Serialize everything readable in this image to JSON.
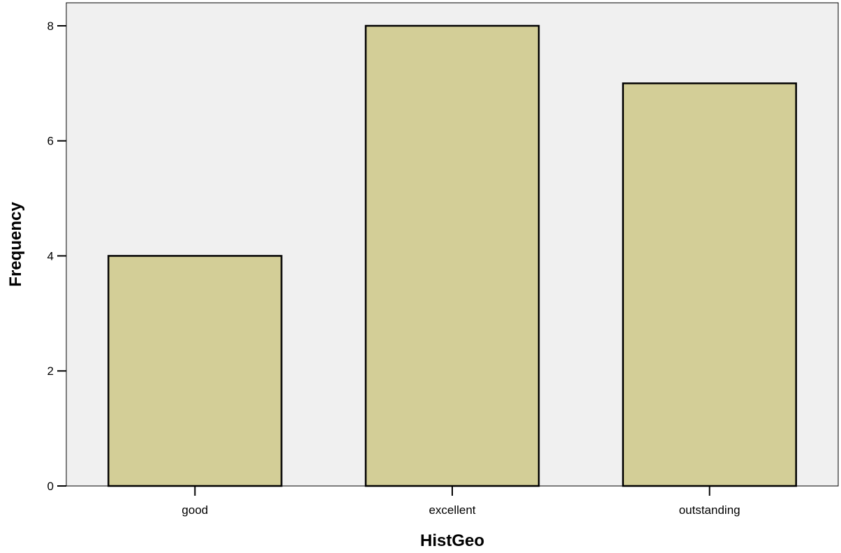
{
  "chart_data": {
    "type": "bar",
    "title": "",
    "xlabel": "HistGeo",
    "ylabel": "Frequency",
    "categories": [
      "good",
      "excellent",
      "outstanding"
    ],
    "values": [
      4,
      8,
      7
    ],
    "ylim": [
      0,
      8.4
    ],
    "yticks": [
      0,
      2,
      4,
      6,
      8
    ],
    "grid": false,
    "legend": "none",
    "colors": {
      "plot_background": "#f0f0f0",
      "bar_fill": "#d3ce97",
      "bar_stroke": "#000000",
      "axis": "#000000"
    }
  }
}
